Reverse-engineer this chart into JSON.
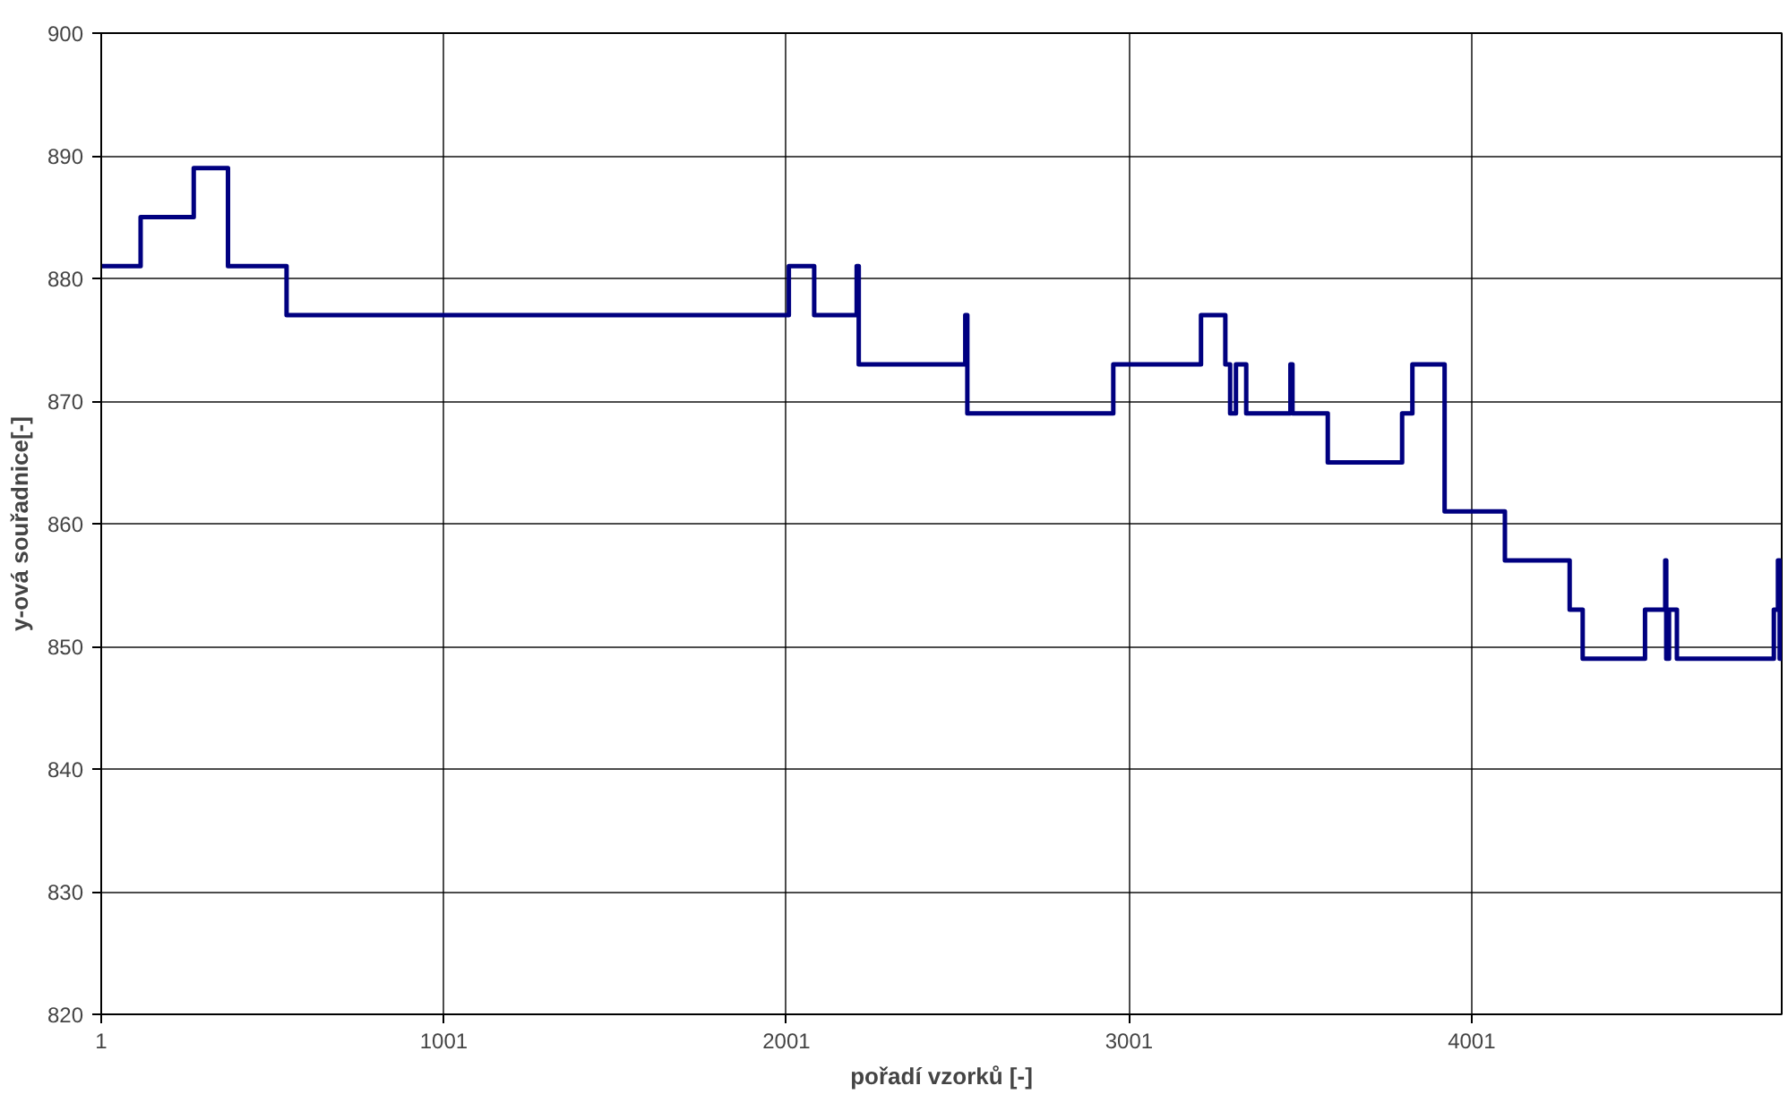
{
  "chart_data": {
    "type": "step",
    "xlabel": "pořadí vzorků [-]",
    "ylabel": "y-ová souřadnice[-]",
    "x": [
      1,
      116,
      271,
      371,
      542,
      2008,
      2082,
      2206,
      2212,
      2523,
      2529,
      2955,
      3211,
      3282,
      3296,
      3313,
      3343,
      3472,
      3478,
      3581,
      3798,
      3828,
      3922,
      4098,
      4287,
      4325,
      4507,
      4566,
      4569,
      4577,
      4600,
      4883,
      4895,
      4900,
      4906
    ],
    "series": [
      {
        "color": "#000080",
        "values": [
          881,
          885,
          889,
          881,
          877,
          881,
          877,
          881,
          873,
          877,
          869,
          873,
          877,
          873,
          869,
          873,
          869,
          873,
          869,
          865,
          869,
          873,
          861,
          857,
          853,
          849,
          853,
          857,
          849,
          853,
          849,
          853,
          857,
          849,
          849
        ]
      }
    ],
    "xlim": [
      1,
      4906
    ],
    "xticks": [
      1,
      1001,
      2001,
      3001,
      4001
    ],
    "ylim": [
      820,
      900
    ],
    "yticks": [
      820,
      830,
      840,
      850,
      860,
      870,
      880,
      890,
      900
    ],
    "grid": true,
    "marker": "none",
    "line_style": "solid"
  }
}
